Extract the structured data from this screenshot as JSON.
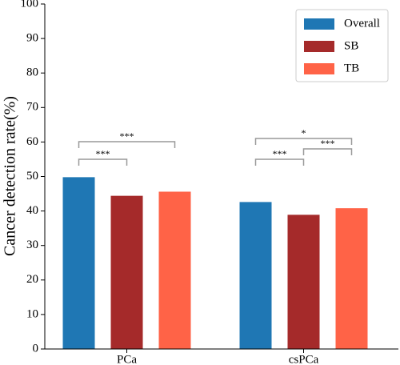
{
  "chart_data": {
    "type": "bar",
    "y_label": "Cancer detection rate(%)",
    "categories": [
      "PCa",
      "csPCa"
    ],
    "series": [
      {
        "name": "Overall",
        "color": "#1f77b4",
        "values": [
          49.8,
          42.6
        ]
      },
      {
        "name": "SB",
        "color": "#a52a2a",
        "values": [
          44.4,
          38.9
        ]
      },
      {
        "name": "TB",
        "color": "#ff6347",
        "values": [
          45.6,
          40.8
        ]
      }
    ],
    "ylim": [
      0,
      100
    ],
    "yticks": [
      0,
      10,
      20,
      30,
      40,
      50,
      60,
      70,
      80,
      90,
      100
    ],
    "legend": "upper right",
    "annotations": [
      {
        "category": "PCa",
        "between": [
          "Overall",
          "SB"
        ],
        "label": "***"
      },
      {
        "category": "PCa",
        "between": [
          "Overall",
          "TB"
        ],
        "label": "***"
      },
      {
        "category": "csPCa",
        "between": [
          "Overall",
          "SB"
        ],
        "label": "***"
      },
      {
        "category": "csPCa",
        "between": [
          "SB",
          "TB"
        ],
        "label": "***"
      },
      {
        "category": "csPCa",
        "between": [
          "Overall",
          "TB"
        ],
        "label": "*"
      }
    ]
  }
}
